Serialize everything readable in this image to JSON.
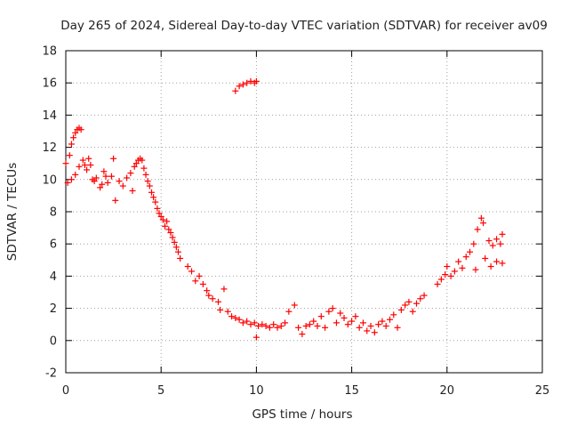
{
  "chart_data": {
    "type": "scatter",
    "title": "Day 265 of 2024, Sidereal Day-to-day VTEC variation (SDTVAR) for receiver av09",
    "xlabel": "GPS time / hours",
    "ylabel": "SDTVAR / TECUs",
    "xlim": [
      0,
      25
    ],
    "ylim": [
      -2,
      18
    ],
    "xticks": [
      0,
      5,
      10,
      15,
      20,
      25
    ],
    "yticks": [
      -2,
      0,
      2,
      4,
      6,
      8,
      10,
      12,
      14,
      16,
      18
    ],
    "grid": true,
    "marker": "+",
    "color": "#ff0000",
    "series": [
      {
        "name": "av09",
        "points": [
          [
            0.0,
            11.0
          ],
          [
            0.1,
            9.8
          ],
          [
            0.2,
            11.5
          ],
          [
            0.3,
            12.2
          ],
          [
            0.4,
            12.6
          ],
          [
            0.5,
            12.9
          ],
          [
            0.6,
            13.1
          ],
          [
            0.7,
            13.2
          ],
          [
            0.8,
            13.1
          ],
          [
            0.3,
            10.0
          ],
          [
            0.5,
            10.3
          ],
          [
            0.7,
            10.8
          ],
          [
            0.9,
            11.2
          ],
          [
            1.0,
            10.9
          ],
          [
            1.1,
            10.6
          ],
          [
            1.2,
            11.3
          ],
          [
            1.3,
            10.9
          ],
          [
            1.4,
            10.0
          ],
          [
            1.5,
            9.9
          ],
          [
            1.6,
            10.1
          ],
          [
            1.8,
            9.5
          ],
          [
            1.9,
            9.7
          ],
          [
            2.0,
            10.5
          ],
          [
            2.1,
            10.2
          ],
          [
            2.2,
            9.8
          ],
          [
            2.4,
            10.2
          ],
          [
            2.5,
            11.3
          ],
          [
            2.6,
            8.7
          ],
          [
            2.8,
            9.9
          ],
          [
            3.0,
            9.6
          ],
          [
            3.2,
            10.1
          ],
          [
            3.4,
            10.4
          ],
          [
            3.5,
            9.3
          ],
          [
            3.6,
            10.8
          ],
          [
            3.7,
            11.0
          ],
          [
            3.8,
            11.2
          ],
          [
            3.9,
            11.3
          ],
          [
            4.0,
            11.2
          ],
          [
            4.1,
            10.7
          ],
          [
            4.2,
            10.3
          ],
          [
            4.3,
            9.9
          ],
          [
            4.4,
            9.6
          ],
          [
            4.5,
            9.2
          ],
          [
            4.6,
            8.9
          ],
          [
            4.7,
            8.6
          ],
          [
            4.8,
            8.2
          ],
          [
            4.9,
            7.9
          ],
          [
            5.0,
            7.7
          ],
          [
            5.1,
            7.5
          ],
          [
            5.2,
            7.1
          ],
          [
            5.3,
            7.4
          ],
          [
            5.4,
            6.9
          ],
          [
            5.5,
            6.7
          ],
          [
            5.6,
            6.4
          ],
          [
            5.7,
            6.1
          ],
          [
            5.8,
            5.8
          ],
          [
            5.9,
            5.5
          ],
          [
            6.0,
            5.1
          ],
          [
            6.4,
            4.6
          ],
          [
            6.6,
            4.3
          ],
          [
            6.8,
            3.7
          ],
          [
            7.0,
            4.0
          ],
          [
            7.2,
            3.5
          ],
          [
            7.4,
            3.1
          ],
          [
            7.5,
            2.8
          ],
          [
            7.7,
            2.6
          ],
          [
            8.0,
            2.4
          ],
          [
            8.1,
            1.9
          ],
          [
            8.3,
            3.2
          ],
          [
            8.5,
            1.8
          ],
          [
            8.7,
            1.5
          ],
          [
            8.9,
            1.4
          ],
          [
            9.1,
            1.3
          ],
          [
            9.3,
            1.1
          ],
          [
            9.5,
            1.2
          ],
          [
            9.7,
            1.0
          ],
          [
            9.9,
            1.1
          ],
          [
            10.1,
            0.9
          ],
          [
            10.0,
            0.2
          ],
          [
            10.3,
            1.0
          ],
          [
            10.5,
            0.9
          ],
          [
            10.7,
            0.8
          ],
          [
            10.9,
            1.0
          ],
          [
            11.1,
            0.8
          ],
          [
            11.3,
            0.9
          ],
          [
            11.5,
            1.1
          ],
          [
            11.7,
            1.8
          ],
          [
            12.0,
            2.2
          ],
          [
            12.2,
            0.8
          ],
          [
            12.4,
            0.4
          ],
          [
            12.6,
            0.9
          ],
          [
            12.8,
            1.0
          ],
          [
            13.0,
            1.2
          ],
          [
            13.2,
            0.9
          ],
          [
            13.4,
            1.5
          ],
          [
            13.6,
            0.8
          ],
          [
            13.8,
            1.8
          ],
          [
            14.0,
            2.0
          ],
          [
            14.2,
            1.1
          ],
          [
            14.4,
            1.7
          ],
          [
            14.6,
            1.4
          ],
          [
            14.8,
            1.0
          ],
          [
            15.0,
            1.2
          ],
          [
            15.2,
            1.5
          ],
          [
            15.4,
            0.8
          ],
          [
            15.6,
            1.1
          ],
          [
            15.8,
            0.6
          ],
          [
            16.0,
            0.9
          ],
          [
            16.2,
            0.5
          ],
          [
            16.4,
            1.0
          ],
          [
            16.6,
            1.2
          ],
          [
            16.8,
            0.9
          ],
          [
            17.0,
            1.3
          ],
          [
            17.2,
            1.6
          ],
          [
            17.4,
            0.8
          ],
          [
            17.6,
            1.9
          ],
          [
            17.8,
            2.2
          ],
          [
            18.0,
            2.4
          ],
          [
            18.2,
            1.8
          ],
          [
            18.4,
            2.3
          ],
          [
            18.6,
            2.6
          ],
          [
            18.8,
            2.8
          ],
          [
            19.5,
            3.5
          ],
          [
            19.7,
            3.8
          ],
          [
            19.9,
            4.1
          ],
          [
            20.0,
            4.6
          ],
          [
            20.2,
            4.0
          ],
          [
            20.4,
            4.3
          ],
          [
            20.6,
            4.9
          ],
          [
            20.8,
            4.5
          ],
          [
            21.0,
            5.2
          ],
          [
            21.2,
            5.5
          ],
          [
            21.4,
            6.0
          ],
          [
            21.6,
            6.9
          ],
          [
            21.8,
            7.6
          ],
          [
            21.9,
            7.3
          ],
          [
            21.5,
            4.4
          ],
          [
            22.0,
            5.1
          ],
          [
            22.2,
            6.2
          ],
          [
            22.4,
            5.9
          ],
          [
            22.6,
            6.3
          ],
          [
            22.8,
            6.0
          ],
          [
            22.9,
            6.6
          ],
          [
            22.3,
            4.6
          ],
          [
            22.6,
            4.9
          ],
          [
            22.9,
            4.8
          ],
          [
            8.9,
            15.5
          ],
          [
            9.1,
            15.8
          ],
          [
            9.3,
            15.9
          ],
          [
            9.5,
            16.0
          ],
          [
            9.7,
            16.1
          ],
          [
            9.9,
            16.0
          ],
          [
            10.0,
            16.1
          ]
        ]
      }
    ]
  }
}
